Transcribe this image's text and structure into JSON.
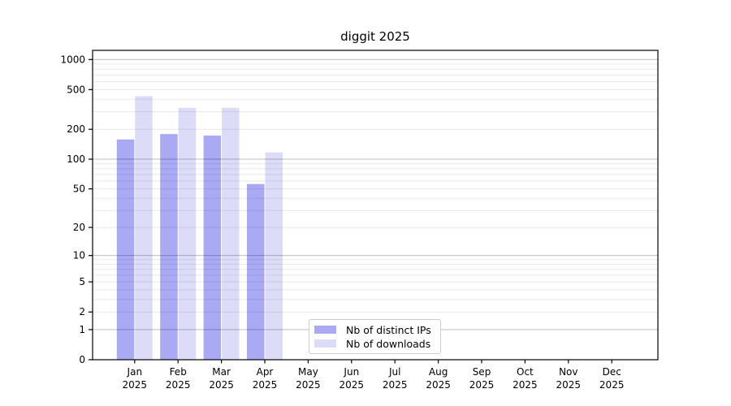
{
  "chart_data": {
    "type": "bar",
    "title": "diggit 2025",
    "categories": [
      "Jan",
      "Feb",
      "Mar",
      "Apr",
      "May",
      "Jun",
      "Jul",
      "Aug",
      "Sep",
      "Oct",
      "Nov",
      "Dec"
    ],
    "category_year_line": "2025",
    "series": [
      {
        "name": "Nb of distinct IPs",
        "color": "#a9a9f4",
        "values": [
          158,
          179,
          173,
          56,
          0,
          0,
          0,
          0,
          0,
          0,
          0,
          0
        ]
      },
      {
        "name": "Nb of downloads",
        "color": "#dcdcf8",
        "values": [
          430,
          328,
          328,
          117,
          0,
          0,
          0,
          0,
          0,
          0,
          0,
          0
        ]
      }
    ],
    "y_scale": "log10(value+1)",
    "y_ticks": [
      0,
      1,
      2,
      5,
      10,
      20,
      50,
      100,
      200,
      500,
      1000
    ],
    "y_major_grid_values": [
      1,
      10,
      100,
      1000
    ],
    "y_minor_grid_values": [
      2,
      3,
      4,
      5,
      6,
      7,
      8,
      9,
      20,
      30,
      40,
      50,
      60,
      70,
      80,
      90,
      200,
      300,
      400,
      500,
      600,
      700,
      800,
      900
    ],
    "ylim": [
      0,
      1230
    ],
    "grid": true,
    "legend_position": "lower center",
    "colors": {
      "spine": "#000000",
      "major_grid": "rgba(0,0,0,0.26)",
      "minor_grid": "rgba(0,0,0,0.09)",
      "tick_text": "#000000"
    }
  }
}
